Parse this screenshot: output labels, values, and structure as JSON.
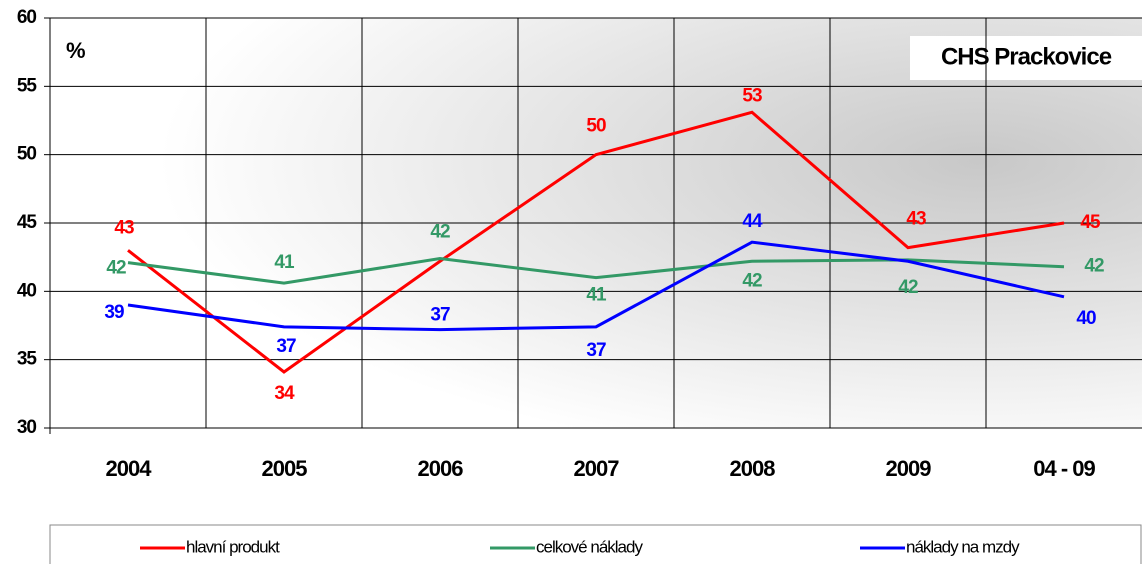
{
  "chart_data": {
    "type": "line",
    "title": "CHS Prackovice",
    "y_label": "%",
    "categories": [
      "2004",
      "2005",
      "2006",
      "2007",
      "2008",
      "2009",
      "04 - 09"
    ],
    "series": [
      {
        "name": "hlavní produkt",
        "color": "#ff0000",
        "values": [
          43,
          34.1,
          42.2,
          50,
          53.1,
          43.2,
          45
        ],
        "value_labels": [
          "43",
          "34",
          null,
          "50",
          "53",
          "43",
          "45"
        ]
      },
      {
        "name": "celkové náklady",
        "color": "#339966",
        "values": [
          42.1,
          40.6,
          42.4,
          41,
          42.2,
          42.3,
          41.8
        ],
        "value_labels": [
          "42",
          "41",
          "42",
          "41",
          "42",
          "42",
          "42"
        ]
      },
      {
        "name": "náklady na mzdy",
        "color": "#0000ff",
        "values": [
          39,
          37.4,
          37.2,
          37.4,
          43.6,
          42.2,
          39.6
        ],
        "value_labels": [
          "39",
          "37",
          "37",
          "37",
          "44",
          null,
          "40"
        ]
      }
    ],
    "ylim": [
      30,
      60
    ],
    "yticks": [
      30,
      35,
      40,
      45,
      50,
      55,
      60
    ],
    "grid": true,
    "legend": "bottom"
  }
}
